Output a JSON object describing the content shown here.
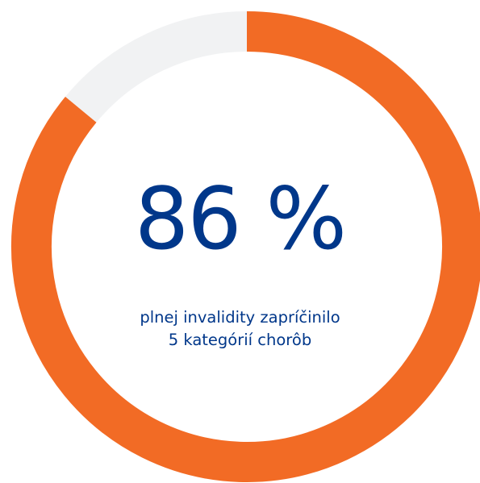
{
  "chart_data": {
    "type": "pie",
    "variant": "donut",
    "value_label": "86 %",
    "caption_lines": [
      "plnej invalidity zapríčinilo",
      "5 kategórií chorôb"
    ],
    "values": [
      86,
      14
    ],
    "colors": [
      "#f26b25",
      "#f1f2f3"
    ],
    "start": "top",
    "direction": "clockwise"
  },
  "colors": {
    "accent": "#f26b25",
    "track": "#f1f2f3",
    "text": "#00378a"
  }
}
